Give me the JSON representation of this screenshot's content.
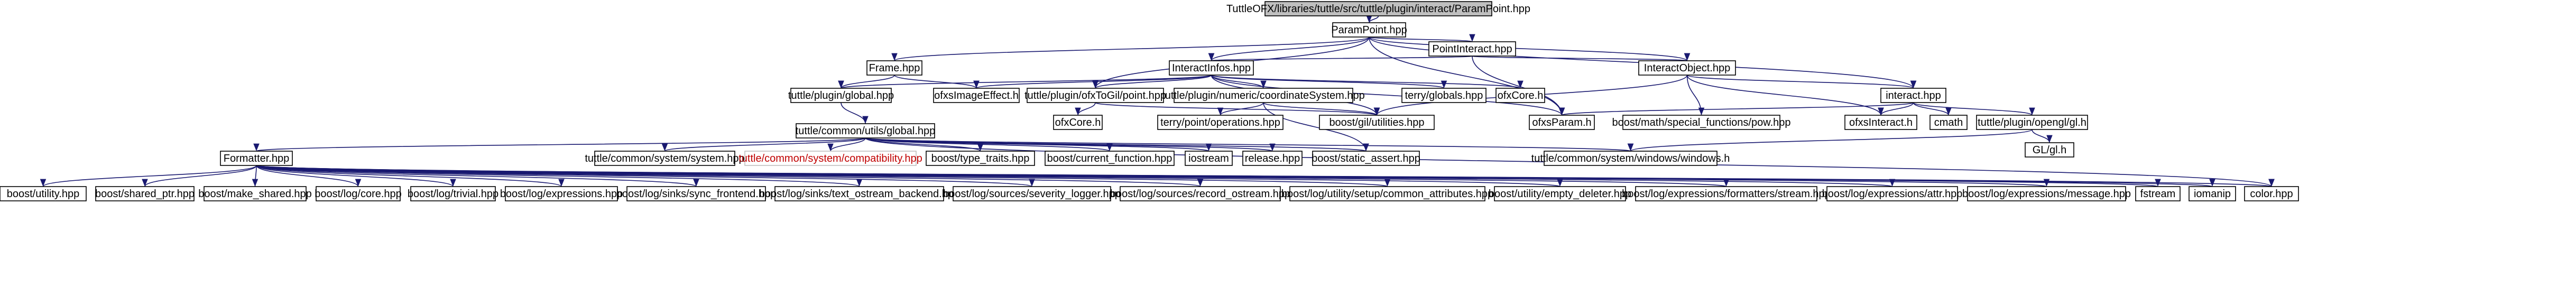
{
  "diagram": {
    "type": "include-dependency-graph",
    "colors": {
      "edge": "#191970",
      "root_fill": "#bfbfbf",
      "node_fill": "#ffffff",
      "missing_text": "#c00000"
    },
    "nodes": [
      {
        "id": "root",
        "label": "TuttleOFX/libraries/tuttle/src/tuttle/plugin/interact/ParamPoint.hpp"
      },
      {
        "id": "parampoint",
        "label": "ParamPoint.hpp"
      },
      {
        "id": "pointinteract",
        "label": "PointInteract.hpp"
      },
      {
        "id": "frame",
        "label": "Frame.hpp"
      },
      {
        "id": "interactinfos",
        "label": "InteractInfos.hpp"
      },
      {
        "id": "interactobject",
        "label": "InteractObject.hpp"
      },
      {
        "id": "interact",
        "label": "interact.hpp"
      },
      {
        "id": "pluginglobal",
        "label": "tuttle/plugin/global.hpp"
      },
      {
        "id": "ofximageeffect",
        "label": "ofxsImageEffect.h"
      },
      {
        "id": "ofxtogil",
        "label": "tuttle/plugin/ofxToGil/point.hpp"
      },
      {
        "id": "coordsys",
        "label": "tuttle/plugin/numeric/coordinateSystem.hpp"
      },
      {
        "id": "terryglobals",
        "label": "terry/globals.hpp"
      },
      {
        "id": "ofxcore_a",
        "label": "ofxCore.h"
      },
      {
        "id": "specialfunc",
        "label": "boost/math/special_functions/pow.hpp"
      },
      {
        "id": "cmath",
        "label": "cmath"
      },
      {
        "id": "openglgl",
        "label": "tuttle/plugin/opengl/gl.h"
      },
      {
        "id": "ofxcore_b",
        "label": "ofxCore.h"
      },
      {
        "id": "terrypointops",
        "label": "terry/point/operations.hpp"
      },
      {
        "id": "boostgilutil",
        "label": "boost/gil/utilities.hpp"
      },
      {
        "id": "ofxparam",
        "label": "ofxsParam.h"
      },
      {
        "id": "ofxinteract",
        "label": "ofxsInteract.h"
      },
      {
        "id": "glglh",
        "label": "GL/gl.h"
      },
      {
        "id": "utilsglobal",
        "label": "tuttle/common/utils/global.hpp"
      },
      {
        "id": "formatter",
        "label": "Formatter.hpp"
      },
      {
        "id": "commonsystem",
        "label": "tuttle/common/system/system.hpp"
      },
      {
        "id": "compat",
        "label": "tuttle/common/system/compatibility.hpp"
      },
      {
        "id": "typetraits",
        "label": "boost/type_traits.hpp"
      },
      {
        "id": "currentfunc",
        "label": "boost/current_function.hpp"
      },
      {
        "id": "iostream",
        "label": "iostream"
      },
      {
        "id": "releasehpp",
        "label": "release.hpp"
      },
      {
        "id": "staticassert",
        "label": "boost/static_assert.hpp"
      },
      {
        "id": "windowsh",
        "label": "tuttle/common/system/windows/windows.h"
      },
      {
        "id": "utility",
        "label": "boost/utility.hpp"
      },
      {
        "id": "sharedptr",
        "label": "boost/shared_ptr.hpp"
      },
      {
        "id": "makeshared",
        "label": "boost/make_shared.hpp"
      },
      {
        "id": "logcore",
        "label": "boost/log/core.hpp"
      },
      {
        "id": "logtrivial",
        "label": "boost/log/trivial.hpp"
      },
      {
        "id": "logexpr",
        "label": "boost/log/expressions.hpp"
      },
      {
        "id": "syncfrontend",
        "label": "boost/log/sinks/sync_frontend.hpp"
      },
      {
        "id": "textostream",
        "label": "boost/log/sinks/text_ostream_backend.hpp"
      },
      {
        "id": "severitylogger",
        "label": "boost/log/sources/severity_logger.hpp"
      },
      {
        "id": "recordostream",
        "label": "boost/log/sources/record_ostream.hpp"
      },
      {
        "id": "commonattrs",
        "label": "boost/log/utility/setup/common_attributes.hpp"
      },
      {
        "id": "emptydeleter",
        "label": "boost/utility/empty_deleter.hpp"
      },
      {
        "id": "fmtstream",
        "label": "boost/log/expressions/formatters/stream.hpp"
      },
      {
        "id": "exprattr",
        "label": "boost/log/expressions/attr.hpp"
      },
      {
        "id": "exprmessage",
        "label": "boost/log/expressions/message.hpp"
      },
      {
        "id": "fstream",
        "label": "fstream"
      },
      {
        "id": "iomanip",
        "label": "iomanip"
      },
      {
        "id": "colorhpp",
        "label": "color.hpp"
      }
    ]
  }
}
